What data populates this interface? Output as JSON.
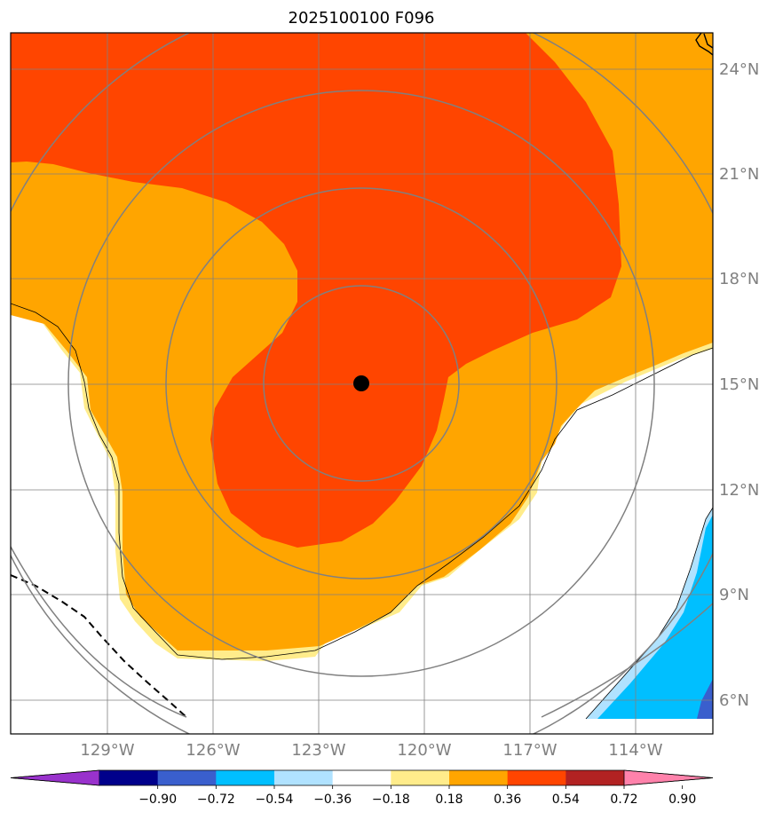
{
  "title": "2025100100 F096",
  "storm_center": {
    "lon": -121.8,
    "lat": 15.0
  },
  "latitude_labels": [
    "24°N",
    "21°N",
    "18°N",
    "15°N",
    "12°N",
    "9°N",
    "6°N"
  ],
  "longitude_labels": [
    "129°W",
    "126°W",
    "123°W",
    "120°W",
    "117°W",
    "114°W"
  ],
  "colorbar": {
    "tick_labels": [
      "−0.90",
      "−0.72",
      "−0.54",
      "−0.36",
      "−0.18",
      "0.18",
      "0.36",
      "0.54",
      "0.72",
      "0.90"
    ],
    "colors": [
      "#9932cc",
      "#00008b",
      "#3a5fcd",
      "#00bfff",
      "#b0e2ff",
      "#ffffff",
      "#ffec8b",
      "#ffa500",
      "#ff4500",
      "#b22222",
      "#ff82ab"
    ]
  },
  "colors": {
    "contour_054": "#ffa500",
    "contour_072": "#ff4500",
    "contour_018": "#ffec8b",
    "negative_036": "#00bfff",
    "negative_054": "#3a5fcd",
    "gridline": "#808080"
  }
}
